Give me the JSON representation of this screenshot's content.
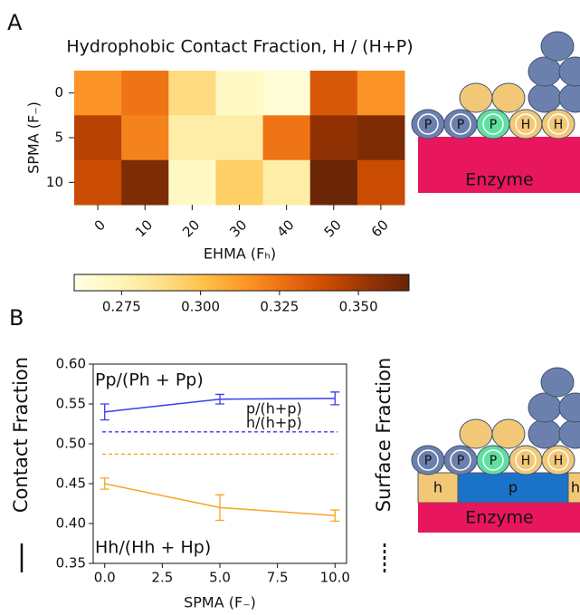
{
  "chart_data": [
    {
      "type": "heatmap",
      "panel": "A",
      "title": "Hydrophobic Contact Fraction, H / (H+P)",
      "x_label": "EHMA (Fₕ)",
      "y_label": "SPMA (F₋)",
      "categories": [
        "0",
        "10",
        "20",
        "30",
        "40",
        "50",
        "60"
      ],
      "rows": [
        "0",
        "5",
        "10"
      ],
      "values": [
        [
          0.315,
          0.325,
          0.29,
          0.27,
          0.265,
          0.335,
          0.315
        ],
        [
          0.345,
          0.32,
          0.28,
          0.28,
          0.325,
          0.355,
          0.36
        ],
        [
          0.34,
          0.36,
          0.27,
          0.295,
          0.28,
          0.365,
          0.34
        ]
      ],
      "colormap": "YlOrBr",
      "clim": [
        0.26,
        0.366
      ],
      "colorbar_ticks": [
        0.275,
        {
          "value": 0.3,
          "label": "0.300"
        },
        0.325,
        {
          "value": 0.35,
          "label": "0.350"
        }
      ]
    },
    {
      "type": "line",
      "panel": "B",
      "x_label": "SPMA (F₋)",
      "y_label": "Contact Fraction",
      "y2_label": "Surface Fraction",
      "x": [
        0,
        5,
        10
      ],
      "series": [
        {
          "name": "Pp/(Ph + Pp)",
          "color": "#3b3bf0",
          "values": [
            0.54,
            0.556,
            0.557
          ],
          "errors": [
            0.01,
            0.006,
            0.008
          ]
        },
        {
          "name": "Hh/(Hh + Hp)",
          "color": "#f5a623",
          "values": [
            0.45,
            0.42,
            0.41
          ],
          "errors": [
            0.007,
            0.016,
            0.007
          ]
        }
      ],
      "reference_lines": [
        {
          "name": "p/(h+p)",
          "color": "#3b3bf0",
          "value": 0.515
        },
        {
          "name": "h/(h+p)",
          "color": "#f5a623",
          "value": 0.487
        }
      ],
      "xlim": [
        -0.5,
        10.5
      ],
      "ylim": [
        0.35,
        0.6
      ],
      "xticks": [
        {
          "value": 0,
          "label": "0.0"
        },
        2.5,
        {
          "value": 5,
          "label": "5.0"
        },
        7.5,
        {
          "value": 10,
          "label": "10.0"
        }
      ],
      "yticks": [
        0.35,
        {
          "value": 0.4,
          "label": "0.40"
        },
        0.45,
        {
          "value": 0.5,
          "label": "0.50"
        },
        0.55,
        {
          "value": 0.6,
          "label": "0.60"
        }
      ]
    }
  ],
  "diagram_a": {
    "beads": [
      "P",
      "P",
      "P",
      "H",
      "H"
    ],
    "enzyme": "Enzyme"
  },
  "diagram_b": {
    "beads": [
      "P",
      "P",
      "P",
      "H",
      "H"
    ],
    "surface": [
      "h",
      "p",
      "h"
    ],
    "enzyme": "Enzyme"
  }
}
